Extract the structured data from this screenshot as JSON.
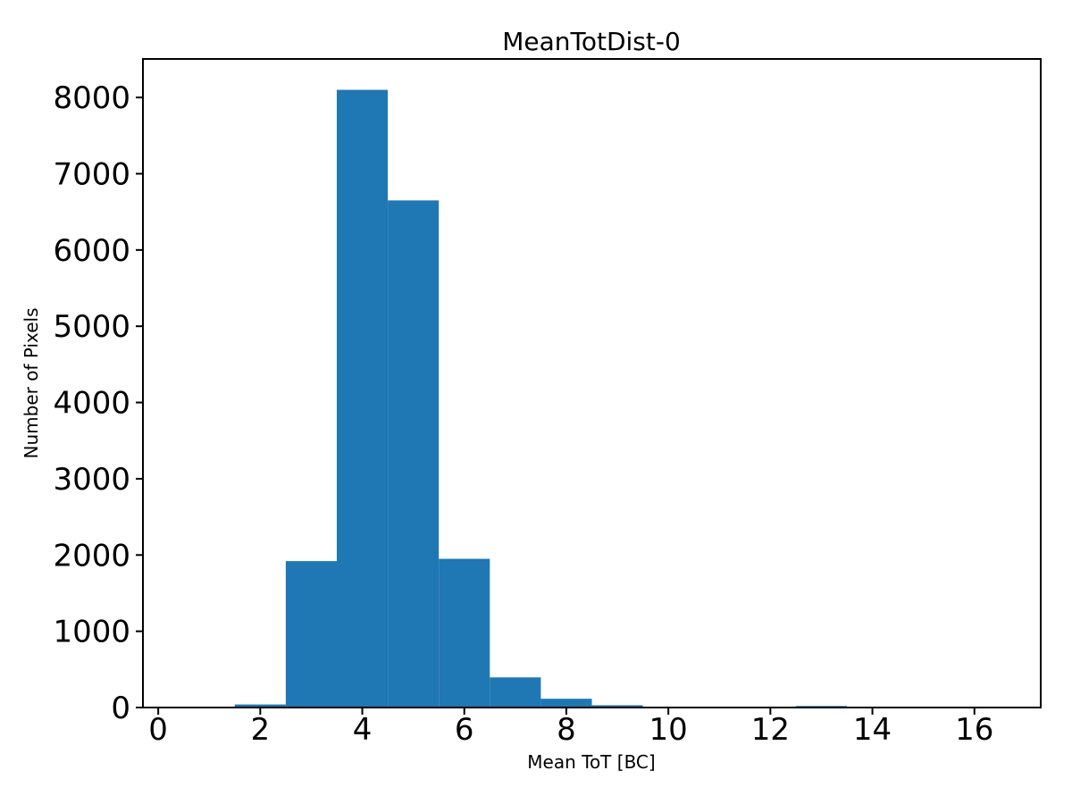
{
  "figure": {
    "background": "#ffffff",
    "text_color": "#000000"
  },
  "chart_data": {
    "type": "bar",
    "subtype": "histogram",
    "title": "MeanTotDist-0",
    "xlabel": "Mean ToT [BC]",
    "ylabel": "Number of Pixels",
    "bar_color": "#1f77b4",
    "bin_edges": [
      0.5,
      1.5,
      2.5,
      3.5,
      4.5,
      5.5,
      6.5,
      7.5,
      8.5,
      9.5,
      10.5,
      11.5,
      12.5,
      13.5,
      14.5,
      15.5,
      16.5
    ],
    "counts": [
      0,
      40,
      1920,
      8100,
      6650,
      1950,
      395,
      115,
      30,
      0,
      0,
      0,
      20,
      0,
      0,
      0
    ],
    "xlim": [
      -0.3,
      17.3
    ],
    "ylim": [
      0,
      8505
    ],
    "xticks": [
      0,
      2,
      4,
      6,
      8,
      10,
      12,
      14,
      16
    ],
    "yticks": [
      0,
      1000,
      2000,
      3000,
      4000,
      5000,
      6000,
      7000,
      8000
    ],
    "grid": false,
    "legend": null
  }
}
